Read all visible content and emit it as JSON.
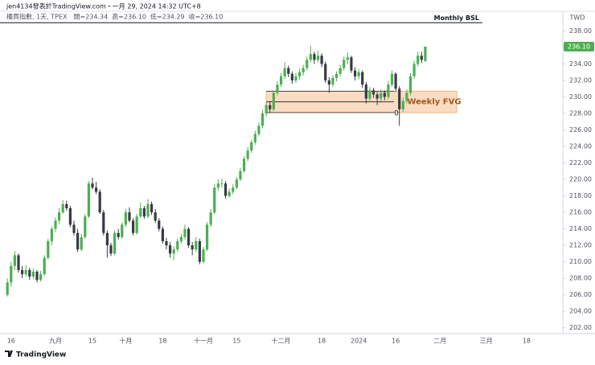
{
  "header": {
    "publisher": "jen4134發表於TradingView.com・一月 29, 2024 14:32 UTC+8",
    "symbol": "櫃買指數, 1天, TPEX",
    "ohlc_labels": [
      "開=",
      "高=",
      "低=",
      "收="
    ]
  },
  "footer": {
    "brand": "TradingView"
  },
  "chart_data": {
    "type": "candlestick",
    "currency": "TWD",
    "up_color": "#4caf50",
    "down_color": "#363a45",
    "xlim": [
      -2,
      150.2
    ],
    "ylim": [
      200.8,
      240
    ],
    "xticks": [
      {
        "value": 1,
        "label": "16"
      },
      {
        "value": 13,
        "label": "九月"
      },
      {
        "value": 23,
        "label": "15"
      },
      {
        "value": 32,
        "label": "十月"
      },
      {
        "value": 42,
        "label": "18"
      },
      {
        "value": 53,
        "label": "十一月"
      },
      {
        "value": 62,
        "label": "15"
      },
      {
        "value": 74,
        "label": "十二月"
      },
      {
        "value": 85,
        "label": "18"
      },
      {
        "value": 95,
        "label": "2024"
      },
      {
        "value": 105,
        "label": "16"
      },
      {
        "value": 117,
        "label": "二月"
      },
      {
        "value": 129.5,
        "label": "三月"
      },
      {
        "value": 140.4,
        "label": "18"
      }
    ],
    "yticks": [
      {
        "value": 202,
        "label": "202.00"
      },
      {
        "value": 204,
        "label": "204.00"
      },
      {
        "value": 206,
        "label": "206.00"
      },
      {
        "value": 208,
        "label": "208.00"
      },
      {
        "value": 210,
        "label": "210.00"
      },
      {
        "value": 212,
        "label": "212.00"
      },
      {
        "value": 214,
        "label": "214.00"
      },
      {
        "value": 216,
        "label": "216.00"
      },
      {
        "value": 218,
        "label": "218.00"
      },
      {
        "value": 220,
        "label": "220.00"
      },
      {
        "value": 222,
        "label": "222.00"
      },
      {
        "value": 224,
        "label": "224.00"
      },
      {
        "value": 226,
        "label": "226.00"
      },
      {
        "value": 228,
        "label": "228.00"
      },
      {
        "value": 230,
        "label": "230.00"
      },
      {
        "value": 232,
        "label": "232.00"
      },
      {
        "value": 234,
        "label": "234.00"
      },
      {
        "value": 236,
        "label": "236.00"
      },
      {
        "value": 238,
        "label": "238.00"
      }
    ],
    "annotations": {
      "bsl": {
        "label": "Monthly BSL",
        "value": 239.0
      },
      "fvg": {
        "label": "Weekly FVG",
        "top": 230.7,
        "mid": 229.4,
        "bottom": 228.1,
        "level_label": "0",
        "color": "#fbdcc2"
      }
    },
    "last_labels": [
      "234.34",
      "236.10",
      "234.29",
      "236.10"
    ],
    "candles": [
      [
        206.0,
        208.0,
        205.8,
        207.5
      ],
      [
        207.5,
        210.0,
        207.0,
        209.5
      ],
      [
        209.5,
        211.3,
        209.0,
        210.8
      ],
      [
        210.8,
        211.0,
        208.7,
        209.0
      ],
      [
        209.0,
        209.5,
        208.0,
        208.5
      ],
      [
        208.5,
        209.6,
        208.2,
        209.0
      ],
      [
        209.0,
        209.3,
        207.8,
        208.2
      ],
      [
        208.2,
        209.2,
        207.9,
        208.8
      ],
      [
        208.8,
        209.0,
        207.5,
        207.8
      ],
      [
        207.8,
        208.9,
        207.6,
        208.5
      ],
      [
        208.5,
        210.8,
        208.3,
        210.5
      ],
      [
        210.5,
        212.8,
        210.3,
        212.5
      ],
      [
        212.5,
        214.3,
        212.0,
        214.0
      ],
      [
        214.0,
        215.4,
        213.6,
        215.0
      ],
      [
        215.0,
        216.5,
        214.6,
        216.0
      ],
      [
        216.0,
        217.5,
        215.8,
        217.0
      ],
      [
        217.0,
        217.4,
        216.2,
        216.5
      ],
      [
        216.5,
        216.8,
        214.2,
        214.5
      ],
      [
        214.5,
        215.0,
        213.2,
        213.5
      ],
      [
        213.5,
        214.0,
        211.2,
        211.5
      ],
      [
        211.5,
        213.4,
        211.3,
        213.0
      ],
      [
        213.0,
        215.8,
        212.8,
        215.5
      ],
      [
        215.5,
        219.8,
        215.3,
        219.5
      ],
      [
        219.5,
        220.2,
        218.8,
        219.0
      ],
      [
        219.0,
        219.7,
        218.2,
        218.5
      ],
      [
        218.5,
        218.8,
        215.8,
        216.0
      ],
      [
        216.0,
        216.3,
        213.2,
        213.5
      ],
      [
        213.5,
        213.8,
        210.5,
        212.0
      ],
      [
        212.0,
        212.3,
        210.7,
        211.0
      ],
      [
        211.0,
        213.8,
        210.8,
        213.5
      ],
      [
        213.5,
        214.0,
        212.7,
        213.0
      ],
      [
        213.0,
        214.8,
        212.8,
        214.5
      ],
      [
        214.5,
        216.4,
        214.2,
        216.0
      ],
      [
        216.0,
        216.6,
        214.8,
        215.0
      ],
      [
        215.0,
        215.3,
        213.2,
        213.5
      ],
      [
        213.5,
        215.8,
        213.3,
        215.5
      ],
      [
        215.5,
        217.2,
        215.3,
        216.5
      ],
      [
        216.5,
        216.8,
        215.2,
        215.5
      ],
      [
        215.5,
        217.6,
        215.3,
        217.0
      ],
      [
        217.0,
        217.3,
        215.7,
        216.0
      ],
      [
        216.0,
        216.4,
        214.7,
        215.0
      ],
      [
        215.0,
        215.3,
        213.7,
        214.0
      ],
      [
        214.0,
        214.3,
        212.2,
        212.5
      ],
      [
        212.5,
        212.9,
        211.5,
        212.0
      ],
      [
        212.0,
        212.4,
        210.5,
        211.0
      ],
      [
        211.0,
        211.9,
        210.2,
        211.5
      ],
      [
        211.5,
        212.8,
        211.2,
        212.5
      ],
      [
        212.5,
        213.4,
        212.2,
        213.0
      ],
      [
        213.0,
        214.5,
        212.7,
        214.0
      ],
      [
        214.0,
        214.2,
        211.7,
        212.0
      ],
      [
        212.0,
        212.4,
        210.8,
        211.5
      ],
      [
        211.5,
        213.0,
        211.2,
        212.5
      ],
      [
        212.5,
        212.8,
        209.7,
        210.0
      ],
      [
        210.0,
        211.8,
        209.8,
        211.5
      ],
      [
        211.5,
        214.8,
        211.3,
        214.5
      ],
      [
        214.5,
        216.4,
        214.2,
        216.0
      ],
      [
        216.0,
        219.4,
        215.8,
        219.0
      ],
      [
        219.0,
        220.0,
        218.6,
        219.5
      ],
      [
        219.5,
        220.1,
        219.0,
        219.5
      ],
      [
        219.5,
        219.8,
        217.7,
        218.0
      ],
      [
        218.0,
        218.9,
        217.8,
        218.5
      ],
      [
        218.5,
        219.4,
        218.2,
        219.0
      ],
      [
        219.0,
        220.3,
        218.8,
        220.0
      ],
      [
        220.0,
        221.4,
        219.8,
        221.0
      ],
      [
        221.0,
        222.8,
        220.8,
        222.5
      ],
      [
        222.5,
        223.9,
        222.2,
        223.5
      ],
      [
        223.5,
        224.8,
        223.2,
        224.5
      ],
      [
        224.5,
        225.9,
        224.2,
        225.5
      ],
      [
        225.5,
        226.9,
        225.2,
        226.5
      ],
      [
        226.5,
        228.4,
        226.2,
        228.0
      ],
      [
        228.0,
        229.4,
        227.6,
        229.0
      ],
      [
        229.0,
        229.5,
        228.1,
        228.5
      ],
      [
        228.5,
        230.8,
        228.3,
        230.5
      ],
      [
        230.5,
        231.9,
        230.2,
        231.5
      ],
      [
        231.5,
        232.9,
        231.2,
        232.5
      ],
      [
        232.5,
        234.2,
        232.2,
        233.5
      ],
      [
        233.5,
        233.8,
        232.4,
        232.8
      ],
      [
        232.8,
        233.1,
        231.6,
        232.0
      ],
      [
        232.0,
        232.9,
        231.7,
        232.5
      ],
      [
        232.5,
        233.4,
        232.1,
        233.0
      ],
      [
        233.0,
        233.9,
        232.6,
        233.5
      ],
      [
        233.5,
        234.9,
        233.2,
        234.5
      ],
      [
        234.5,
        236.2,
        234.2,
        235.2
      ],
      [
        235.2,
        235.5,
        234.0,
        234.5
      ],
      [
        234.5,
        235.6,
        234.2,
        235.0
      ],
      [
        235.0,
        235.3,
        233.6,
        234.0
      ],
      [
        234.0,
        234.3,
        231.7,
        232.0
      ],
      [
        232.0,
        232.4,
        230.5,
        231.5
      ],
      [
        231.5,
        232.6,
        231.2,
        232.3
      ],
      [
        232.3,
        233.1,
        231.9,
        232.8
      ],
      [
        232.8,
        233.9,
        232.5,
        233.5
      ],
      [
        233.5,
        234.9,
        233.2,
        234.5
      ],
      [
        234.5,
        235.4,
        234.0,
        234.8
      ],
      [
        234.8,
        235.0,
        232.9,
        233.2
      ],
      [
        233.2,
        233.6,
        232.0,
        232.5
      ],
      [
        232.5,
        233.4,
        232.1,
        233.0
      ],
      [
        233.0,
        233.2,
        231.1,
        231.5
      ],
      [
        231.5,
        231.8,
        229.2,
        229.8
      ],
      [
        229.8,
        231.2,
        229.5,
        230.8
      ],
      [
        230.8,
        231.1,
        229.9,
        230.3
      ],
      [
        230.3,
        230.6,
        229.0,
        229.8
      ],
      [
        229.8,
        230.9,
        229.5,
        230.5
      ],
      [
        230.5,
        230.8,
        229.6,
        230.0
      ],
      [
        230.0,
        231.9,
        229.7,
        231.5
      ],
      [
        231.5,
        233.2,
        231.2,
        232.8
      ],
      [
        232.8,
        233.0,
        230.6,
        231.0
      ],
      [
        231.0,
        231.3,
        226.5,
        228.5
      ],
      [
        228.5,
        229.9,
        228.2,
        229.5
      ],
      [
        229.5,
        230.9,
        229.2,
        230.5
      ],
      [
        230.5,
        232.9,
        230.2,
        232.5
      ],
      [
        232.5,
        234.4,
        232.2,
        234.0
      ],
      [
        234.0,
        235.5,
        233.7,
        235.0
      ],
      [
        235.0,
        235.5,
        234.1,
        234.5
      ],
      [
        234.34,
        236.1,
        234.29,
        236.1
      ]
    ]
  }
}
